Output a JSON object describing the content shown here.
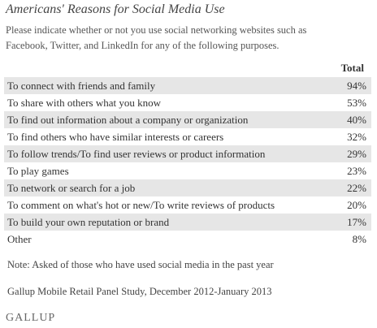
{
  "header": {
    "title": "Americans' Reasons for Social Media Use",
    "subtitle": [
      "Please indicate whether or not you use social networking websites such as",
      "Facebook, Twitter, and LinkedIn for any of the following purposes."
    ]
  },
  "table": {
    "columns": [
      "Total"
    ],
    "rows": [
      [
        "To connect with friends and family",
        "94%"
      ],
      [
        "To share with others what you know",
        "53%"
      ],
      [
        "To find out information about a company or organization",
        "40%"
      ],
      [
        "To find others who have similar interests or careers",
        "32%"
      ],
      [
        "To follow trends/To find user reviews or product information",
        "29%"
      ],
      [
        "To play games",
        "23%"
      ],
      [
        "To network or search for a job",
        "22%"
      ],
      [
        "To comment on what's hot or new/To write reviews of products",
        "20%"
      ],
      [
        "To build your own reputation or brand",
        "17%"
      ],
      [
        "Other",
        "8%"
      ]
    ]
  },
  "note": "Note: Asked of those who have used social media in the past year",
  "source": "Gallup Mobile Retail Panel Study, December 2012-January 2013",
  "logo": "GALLUP"
}
